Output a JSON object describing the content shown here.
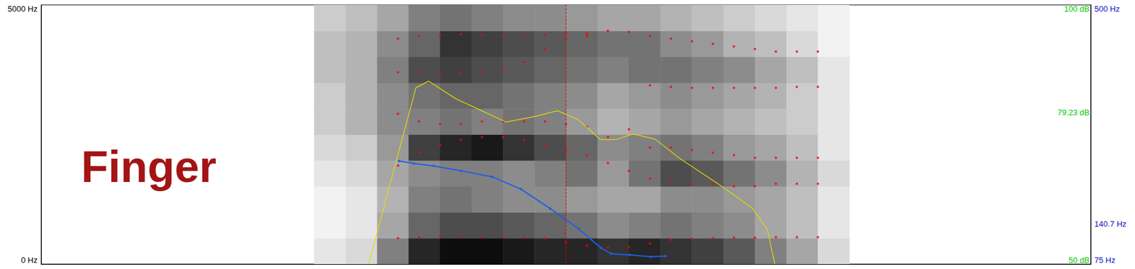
{
  "chart_data": {
    "type": "spectrogram",
    "title": "Finger",
    "xlim": [
      0,
      1
    ],
    "ylim": [
      0,
      5000
    ],
    "yticks": [
      {
        "value": 0,
        "label": "0 Hz"
      },
      {
        "value": 5000,
        "label": "5000 Hz"
      }
    ],
    "y2lim": [
      50,
      100
    ],
    "y2ticks": [
      {
        "value": 50,
        "label": "50 dB"
      },
      {
        "value": 79.23,
        "label": "79.23 dB"
      },
      {
        "value": 100,
        "label": "100 dB"
      }
    ],
    "y3lim": [
      75,
      500
    ],
    "y3ticks": [
      {
        "value": 75,
        "label": "75 Hz"
      },
      {
        "value": 140.7,
        "label": "140.7 Hz"
      },
      {
        "value": 500,
        "label": "500 Hz"
      }
    ],
    "grid": false,
    "tick_labels": "y",
    "cursor": 0.5,
    "spectrogram": {
      "times": [
        0.26,
        0.29,
        0.32,
        0.35,
        0.38,
        0.41,
        0.44,
        0.47,
        0.5,
        0.53,
        0.56,
        0.59,
        0.62,
        0.65,
        0.68,
        0.71,
        0.74,
        0.77
      ],
      "freqs": [
        0,
        500,
        1000,
        1500,
        2000,
        2500,
        3000,
        3500,
        4000,
        4500,
        5000
      ],
      "level_range": [
        0,
        1
      ],
      "levels": [
        [
          0.1,
          0.05,
          0.05,
          0.1,
          0.15,
          0.2,
          0.2,
          0.25,
          0.25,
          0.2
        ],
        [
          0.15,
          0.1,
          0.1,
          0.15,
          0.2,
          0.3,
          0.3,
          0.3,
          0.3,
          0.25
        ],
        [
          0.5,
          0.35,
          0.3,
          0.35,
          0.4,
          0.45,
          0.45,
          0.5,
          0.45,
          0.35
        ],
        [
          0.85,
          0.6,
          0.5,
          0.45,
          0.75,
          0.5,
          0.55,
          0.7,
          0.6,
          0.5
        ],
        [
          0.95,
          0.7,
          0.55,
          0.5,
          0.85,
          0.55,
          0.6,
          0.75,
          0.8,
          0.55
        ],
        [
          0.95,
          0.7,
          0.5,
          0.5,
          0.9,
          0.5,
          0.6,
          0.7,
          0.75,
          0.5
        ],
        [
          0.9,
          0.65,
          0.45,
          0.45,
          0.8,
          0.55,
          0.55,
          0.65,
          0.7,
          0.45
        ],
        [
          0.85,
          0.6,
          0.45,
          0.5,
          0.7,
          0.5,
          0.5,
          0.6,
          0.65,
          0.45
        ],
        [
          0.85,
          0.55,
          0.4,
          0.55,
          0.6,
          0.4,
          0.45,
          0.55,
          0.6,
          0.4
        ],
        [
          0.8,
          0.45,
          0.35,
          0.4,
          0.45,
          0.3,
          0.35,
          0.5,
          0.55,
          0.35
        ],
        [
          0.85,
          0.5,
          0.35,
          0.55,
          0.5,
          0.35,
          0.4,
          0.55,
          0.55,
          0.35
        ],
        [
          0.8,
          0.55,
          0.45,
          0.7,
          0.55,
          0.4,
          0.45,
          0.55,
          0.45,
          0.3
        ],
        [
          0.75,
          0.5,
          0.45,
          0.65,
          0.5,
          0.35,
          0.4,
          0.5,
          0.4,
          0.25
        ],
        [
          0.65,
          0.45,
          0.4,
          0.55,
          0.4,
          0.3,
          0.35,
          0.45,
          0.3,
          0.2
        ],
        [
          0.5,
          0.35,
          0.35,
          0.45,
          0.35,
          0.25,
          0.3,
          0.35,
          0.25,
          0.15
        ],
        [
          0.35,
          0.25,
          0.25,
          0.3,
          0.25,
          0.2,
          0.2,
          0.25,
          0.15,
          0.1
        ],
        [
          0.15,
          0.1,
          0.1,
          0.15,
          0.1,
          0.1,
          0.1,
          0.1,
          0.05,
          0.05
        ]
      ]
    },
    "series": [
      {
        "type": "scatter",
        "color": "#ff0000",
        "marker": "circle",
        "x": [
          0.34,
          0.36,
          0.38,
          0.4,
          0.42,
          0.44,
          0.46,
          0.48,
          0.5,
          0.52,
          0.54,
          0.56,
          0.58,
          0.6,
          0.62,
          0.64,
          0.66,
          0.68,
          0.7,
          0.72,
          0.74
        ],
        "values": [
          500,
          520,
          530,
          530,
          520,
          520,
          510,
          500,
          420,
          360,
          320,
          330,
          400,
          470,
          490,
          500,
          510,
          510,
          520,
          520,
          520
        ]
      },
      {
        "type": "scatter",
        "color": "#ff0000",
        "marker": "circle",
        "x": [
          0.34,
          0.36,
          0.38,
          0.4,
          0.42,
          0.44,
          0.46,
          0.48,
          0.5,
          0.52,
          0.54,
          0.56,
          0.58,
          0.6,
          0.62,
          0.64,
          0.66,
          0.68,
          0.7,
          0.72,
          0.74
        ],
        "values": [
          1900,
          2150,
          2300,
          2400,
          2450,
          2450,
          2400,
          2300,
          2200,
          2100,
          1950,
          1800,
          1650,
          1600,
          1550,
          1550,
          1500,
          1500,
          1550,
          1550,
          1550
        ]
      },
      {
        "type": "scatter",
        "color": "#ff0000",
        "marker": "circle",
        "x": [
          0.34,
          0.36,
          0.38,
          0.4,
          0.42,
          0.44,
          0.46,
          0.48,
          0.5,
          0.52,
          0.54,
          0.56,
          0.58,
          0.6,
          0.62,
          0.64,
          0.66,
          0.68,
          0.7,
          0.72,
          0.74
        ],
        "values": [
          2900,
          2750,
          2700,
          2700,
          2750,
          2750,
          2750,
          2750,
          2700,
          2650,
          2450,
          2600,
          2250,
          2250,
          2200,
          2150,
          2100,
          2050,
          2050,
          2050,
          2050
        ]
      },
      {
        "type": "scatter",
        "color": "#ff0000",
        "marker": "circle",
        "x": [
          0.34,
          0.36,
          0.38,
          0.4,
          0.42,
          0.44,
          0.46,
          0.48,
          0.5,
          0.52,
          0.54,
          0.56,
          0.58,
          0.6,
          0.62,
          0.64,
          0.66,
          0.68,
          0.7,
          0.72,
          0.74
        ],
        "values": [
          3700,
          3680,
          3670,
          3680,
          3700,
          3750,
          3900,
          4150,
          4350,
          4400,
          null,
          null,
          3450,
          3420,
          3400,
          3400,
          3400,
          3400,
          3400,
          3420,
          3420
        ]
      },
      {
        "type": "scatter",
        "color": "#ff0000",
        "marker": "circle",
        "x": [
          0.34,
          0.36,
          0.38,
          0.4,
          0.42,
          0.44,
          0.46,
          0.48,
          0.5,
          0.52,
          0.54,
          0.56,
          0.58,
          0.6,
          0.62,
          0.64,
          0.66,
          0.68,
          0.7,
          0.72,
          0.74
        ],
        "values": [
          4350,
          4400,
          4420,
          4430,
          4420,
          4400,
          4400,
          4420,
          4450,
          4450,
          4500,
          4480,
          4400,
          4350,
          4300,
          4250,
          4200,
          4150,
          4100,
          4100,
          4100
        ]
      },
      {
        "type": "line",
        "axis": "y3",
        "color": "#1f5ee0",
        "marker": "circle",
        "line_style": "solid",
        "x": [
          0.341,
          0.355,
          0.374,
          0.4,
          0.43,
          0.457,
          0.485,
          0.512,
          0.533,
          0.543,
          0.561,
          0.581,
          0.595
        ],
        "values": [
          244,
          240,
          236,
          228,
          218,
          198,
          166,
          133,
          102,
          92,
          90,
          87,
          88
        ]
      },
      {
        "type": "line",
        "axis": "y2",
        "color": "#e6dc00",
        "marker": "none",
        "line_style": "solid",
        "x": [
          0.312,
          0.337,
          0.357,
          0.369,
          0.395,
          0.443,
          0.471,
          0.492,
          0.512,
          0.533,
          0.547,
          0.564,
          0.585,
          0.609,
          0.65,
          0.678,
          0.692,
          0.699
        ],
        "values": [
          50,
          68.9,
          84,
          85.3,
          81.9,
          77.4,
          78.5,
          79.6,
          77.8,
          74,
          74,
          75.1,
          74.1,
          70.3,
          64.8,
          60.7,
          56.6,
          50
        ]
      }
    ]
  }
}
